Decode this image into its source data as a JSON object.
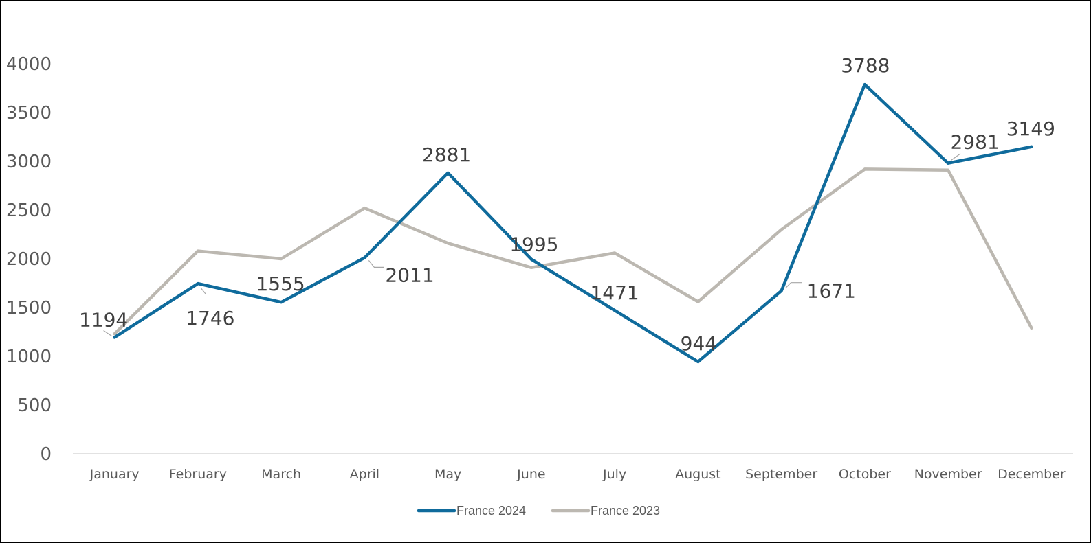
{
  "chart_data": {
    "type": "line",
    "title": "",
    "xlabel": "",
    "ylabel": "",
    "categories": [
      "January",
      "February",
      "March",
      "April",
      "May",
      "June",
      "July",
      "August",
      "September",
      "October",
      "November",
      "December"
    ],
    "ylim": [
      0,
      4000
    ],
    "yticks": [
      "0",
      "500",
      "1000",
      "1500",
      "2000",
      "2500",
      "3000",
      "3500",
      "4000"
    ],
    "yticks_values": [
      0,
      500,
      1000,
      1500,
      2000,
      2500,
      3000,
      3500,
      4000
    ],
    "grid": false,
    "legend_position": "bottom",
    "series": [
      {
        "name": "France 2024",
        "color": "#0f6b9c",
        "values": [
          1194,
          1746,
          1555,
          2011,
          2881,
          1995,
          1471,
          944,
          1671,
          3788,
          2981,
          3149
        ],
        "data_labels": [
          "1194",
          "1746",
          "1555",
          "2011",
          "2881",
          "1995",
          "1471",
          "944",
          "1671",
          "3788",
          "2981",
          "3149"
        ]
      },
      {
        "name": "France 2023",
        "color": "#bcb8b1",
        "values": [
          1230,
          2080,
          2000,
          2520,
          2160,
          1910,
          2060,
          1560,
          2300,
          2920,
          2910,
          1290
        ]
      }
    ]
  }
}
